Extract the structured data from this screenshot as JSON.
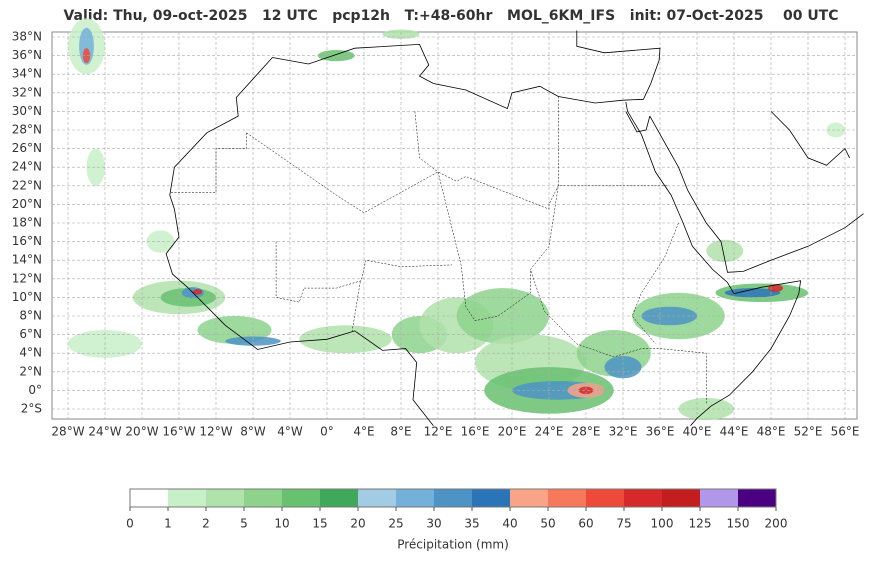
{
  "header": {
    "title": "Valid: Thu, 09-oct-2025   12 UTC   pcp12h   T:+48-60hr   MOL_6KM_IFS   init: 07-Oct-2025    00 UTC"
  },
  "map": {
    "lat_labels": [
      "38°N",
      "36°N",
      "34°N",
      "32°N",
      "30°N",
      "28°N",
      "26°N",
      "24°N",
      "22°N",
      "20°N",
      "18°N",
      "16°N",
      "14°N",
      "12°N",
      "10°N",
      "8°N",
      "6°N",
      "4°N",
      "2°N",
      "0°",
      "2°S"
    ],
    "lon_labels": [
      "28°W",
      "24°W",
      "20°W",
      "16°W",
      "12°W",
      "8°W",
      "4°W",
      "0°",
      "4°E",
      "8°E",
      "12°E",
      "16°E",
      "20°E",
      "24°E",
      "28°E",
      "32°E",
      "36°E",
      "40°E",
      "44°E",
      "48°E",
      "52°E",
      "56°E"
    ]
  },
  "colorbar": {
    "ticks": [
      0,
      1,
      2,
      5,
      10,
      15,
      20,
      25,
      30,
      35,
      40,
      50,
      60,
      75,
      100,
      125,
      150,
      200
    ],
    "colors": [
      "#ffffff",
      "#c8f0c8",
      "#b0e2ac",
      "#8dd38c",
      "#67c16f",
      "#3fa85b",
      "#a3cbe3",
      "#74b1da",
      "#4d93c6",
      "#2b74b7",
      "#f9a487",
      "#f8785c",
      "#ee4a3a",
      "#d7282a",
      "#c41d1d",
      "#b197ea",
      "#4b0082"
    ],
    "label": "Précipitation (mm)"
  }
}
